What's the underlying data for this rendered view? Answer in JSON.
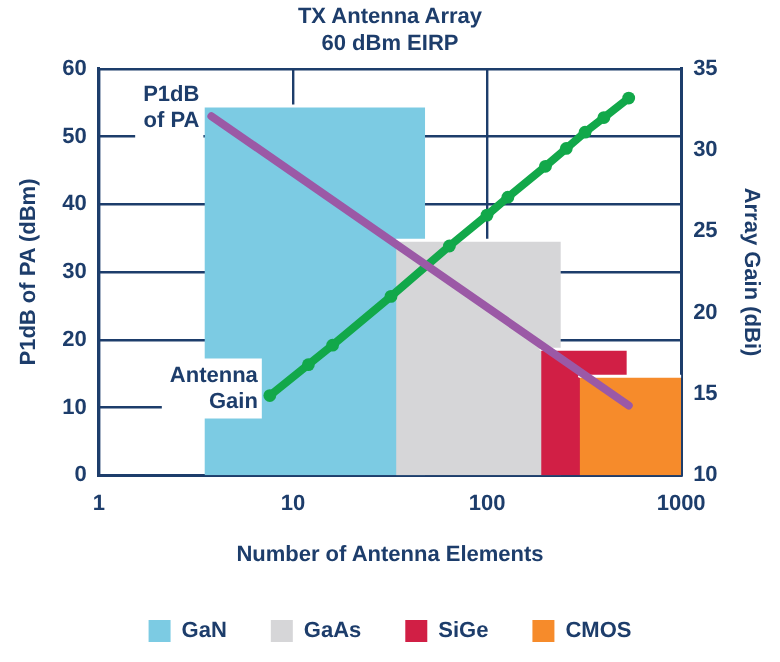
{
  "chart_data": {
    "type": "area",
    "title": "TX Antenna Array",
    "subtitle": "60 dBm EIRP",
    "xlabel": "Number of Antenna Elements",
    "ylabel": "P1dB of PA (dBm)",
    "y2label": "Array Gain (dBi)",
    "log": "x",
    "grid": true,
    "legend": "bottom",
    "xlim": [
      1,
      1000
    ],
    "xticks": [
      1,
      10,
      100,
      1000
    ],
    "ylim": [
      0,
      60
    ],
    "yticks": [
      0,
      10,
      20,
      30,
      40,
      50,
      60
    ],
    "y2lim": [
      10,
      35
    ],
    "y2ticks": [
      10,
      15,
      20,
      25,
      30,
      35
    ],
    "series": [
      {
        "name": "GaN",
        "color": "#7ccbe3",
        "x": [
          3.5,
          48
        ],
        "values": [
          54.5,
          54.5
        ]
      },
      {
        "name": "GaAs",
        "color": "#d6d6d8",
        "x": [
          34,
          240
        ],
        "values": [
          34.7,
          34.7
        ]
      },
      {
        "name": "SiGe",
        "color": "#d11f45",
        "x": [
          190,
          525
        ],
        "values": [
          18.6,
          18.6
        ]
      },
      {
        "name": "CMOS",
        "color": "#f68b2b",
        "x": [
          300,
          1000
        ],
        "values": [
          14.6,
          14.6
        ]
      },
      {
        "type": "line",
        "color": "#9b59a6",
        "x": [
          3.8,
          537
        ],
        "values": [
          53,
          10.3
        ]
      },
      {
        "type": "line",
        "axis": "y2",
        "marker": "circle",
        "color": "#12a84a",
        "x": [
          7.6,
          12,
          16,
          32,
          64,
          100,
          128,
          200,
          256,
          320,
          400,
          537
        ],
        "values": [
          14.9,
          16.8,
          18,
          21,
          24.1,
          26,
          27.1,
          29,
          30.1,
          31.1,
          32,
          33.2
        ]
      }
    ],
    "annotations": [
      {
        "text": "P1dB\nof PA",
        "x": 3.8,
        "y": 53
      },
      {
        "text": "Antenna\nGain",
        "x": 7.6,
        "y": 12.2
      }
    ]
  }
}
